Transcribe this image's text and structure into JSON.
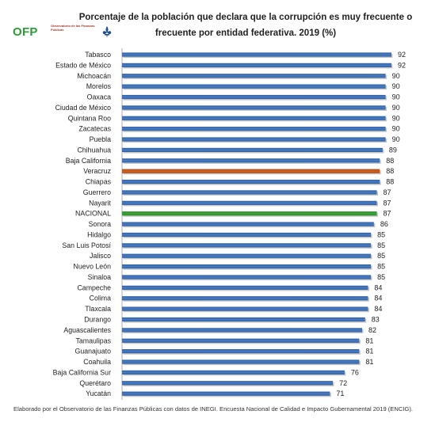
{
  "logo": {
    "text": "OFP",
    "blurb": "Observatorio de las Finanzas Públicas",
    "emblem_icon": "fleur-de-lis-icon"
  },
  "chart_data": {
    "type": "bar",
    "orientation": "horizontal",
    "title": "Porcentaje de la población que declara que la corrupción es muy frecuente o frecuente por entidad federativa. 2019 (%)",
    "categories": [
      "Tabasco",
      "Estado de México",
      "Michoacán",
      "Morelos",
      "Oaxaca",
      "Ciudad de México",
      "Quintana Roo",
      "Zacatecas",
      "Puebla",
      "Chihuahua",
      "Baja California",
      "Veracruz",
      "Chiapas",
      "Guerrero",
      "Nayarit",
      "NACIONAL",
      "Sonora",
      "Hidalgo",
      "San Luis Potosí",
      "Jalisco",
      "Nuevo León",
      "Sinaloa",
      "Campeche",
      "Colima",
      "Tlaxcala",
      "Durango",
      "Aguascalientes",
      "Tamaulipas",
      "Guanajuato",
      "Coahuila",
      "Baja California Sur",
      "Querétaro",
      "Yucatán"
    ],
    "values": [
      92,
      92,
      90,
      90,
      90,
      90,
      90,
      90,
      90,
      89,
      88,
      88,
      88,
      87,
      87,
      87,
      86,
      85,
      85,
      85,
      85,
      85,
      84,
      84,
      84,
      83,
      82,
      81,
      81,
      81,
      76,
      72,
      71
    ],
    "xlim": [
      0,
      92
    ],
    "grid": false,
    "colors": {
      "default": "#4a7cc4",
      "highlight_veracruz": "#d0621f",
      "highlight_nacional": "#3fa33b"
    },
    "highlights": {
      "Veracruz": "highlight_veracruz",
      "NACIONAL": "highlight_nacional"
    }
  },
  "footnote": "Elaborado por el Observatorio de las Finanzas Públicas con datos de INEGI. Encuesta Nacional de Calidad e Impacto Gubernamental 2019 (ENCIG)."
}
